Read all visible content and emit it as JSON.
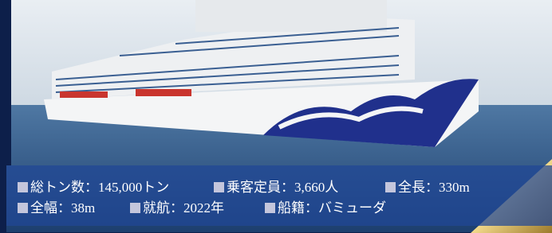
{
  "specs": [
    [
      "総トン数：145,000トン",
      "乗客定員：3,660人",
      "全長：330m"
    ],
    [
      "全幅：38m",
      "就航：2022年",
      "船籍：バミューダ"
    ]
  ]
}
